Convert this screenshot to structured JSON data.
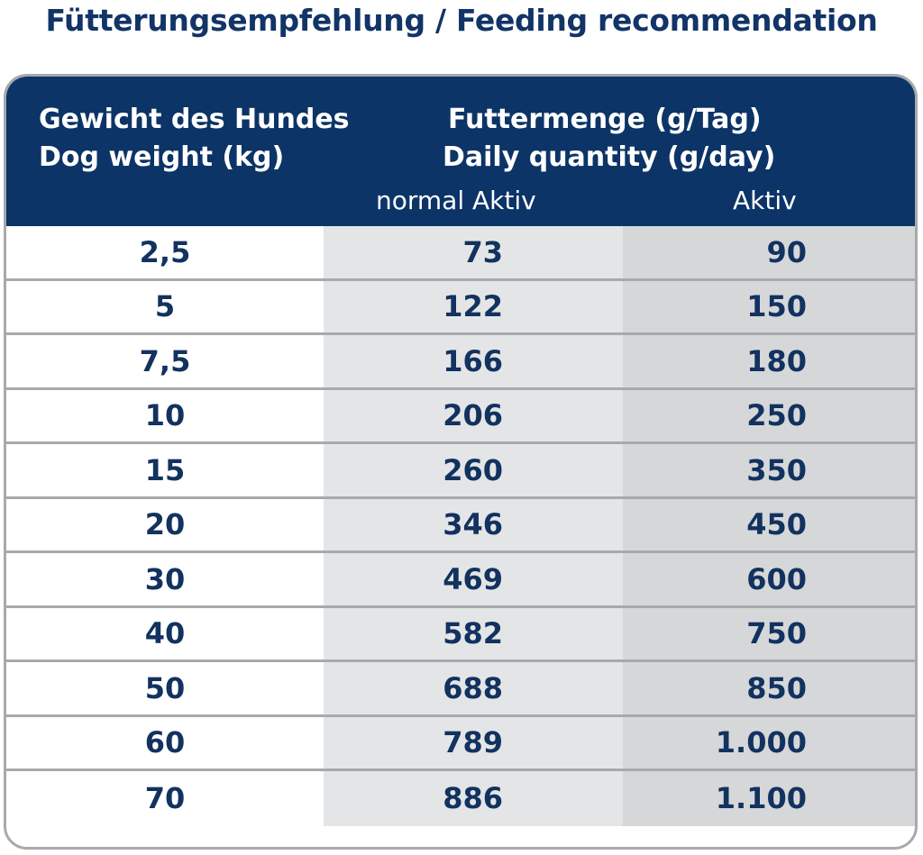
{
  "title": "Fütterungsempfehlung / Feeding recommendation",
  "header": {
    "weight_de": "Gewicht des Hundes",
    "weight_en": "Dog weight (kg)",
    "quantity_de": "Futtermenge (g/Tag)",
    "quantity_en": "Daily quantity (g/day)",
    "col_normal": "normal Aktiv",
    "col_active": "Aktiv"
  },
  "rows": [
    {
      "weight": "2,5",
      "normal": "73",
      "active": "90"
    },
    {
      "weight": "5",
      "normal": "122",
      "active": "150"
    },
    {
      "weight": "7,5",
      "normal": "166",
      "active": "180"
    },
    {
      "weight": "10",
      "normal": "206",
      "active": "250"
    },
    {
      "weight": "15",
      "normal": "260",
      "active": "350"
    },
    {
      "weight": "20",
      "normal": "346",
      "active": "450"
    },
    {
      "weight": "30",
      "normal": "469",
      "active": "600"
    },
    {
      "weight": "40",
      "normal": "582",
      "active": "750"
    },
    {
      "weight": "50",
      "normal": "688",
      "active": "850"
    },
    {
      "weight": "60",
      "normal": "789",
      "active": "1.000"
    },
    {
      "weight": "70",
      "normal": "886",
      "active": "1.100"
    }
  ],
  "colors": {
    "header_bg": "#0c3467",
    "text_dark_blue": "#12325f",
    "normal_col_bg": "#e4e5e7",
    "active_col_bg": "#d6d7d9",
    "border_gray": "#a7a9ac"
  }
}
